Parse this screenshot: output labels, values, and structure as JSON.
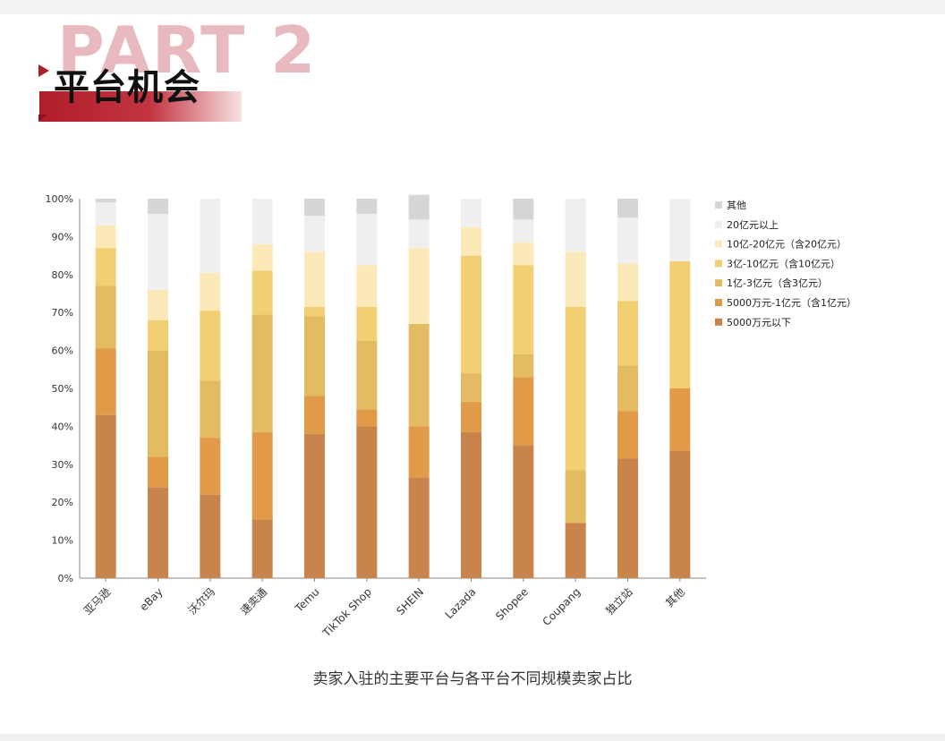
{
  "header": {
    "part_label": "PART 2",
    "title": "平台机会"
  },
  "caption": "卖家入驻的主要平台与各平台不同规模卖家占比",
  "chart_data": {
    "type": "bar",
    "stacked": true,
    "title": "",
    "xlabel": "",
    "ylabel": "",
    "ylim": [
      0,
      100
    ],
    "y_ticks": [
      "0%",
      "10%",
      "20%",
      "30%",
      "40%",
      "50%",
      "60%",
      "70%",
      "80%",
      "90%",
      "100%"
    ],
    "legend_position": "right",
    "categories": [
      "亚马逊",
      "eBay",
      "沃尔玛",
      "速卖通",
      "Temu",
      "TikTok Shop",
      "SHEIN",
      "Lazada",
      "Shopee",
      "Coupang",
      "独立站",
      "其他"
    ],
    "series": [
      {
        "name": "5000万元以下",
        "color": "#c8844a",
        "values": [
          43,
          24,
          22,
          15.5,
          38,
          40,
          26.5,
          38.5,
          35,
          14.5,
          31.5,
          33.5
        ]
      },
      {
        "name": "5000万元-1亿元（含1亿元）",
        "color": "#e09a48",
        "values": [
          17.5,
          8,
          15,
          23,
          10,
          4.5,
          13.5,
          8,
          18,
          0,
          12.5,
          16.5
        ]
      },
      {
        "name": "1亿-3亿元（含3亿元）",
        "color": "#e2bb62",
        "values": [
          16.5,
          28,
          15,
          31,
          21,
          18,
          27,
          7.5,
          6,
          14,
          12,
          0
        ]
      },
      {
        "name": "3亿-10亿元（含10亿元）",
        "color": "#f2cf72",
        "values": [
          10,
          8,
          18.5,
          11.5,
          2.5,
          9,
          0,
          31,
          23.5,
          43,
          17,
          33.5
        ]
      },
      {
        "name": "10亿-20亿元（含20亿元）",
        "color": "#fbe9b9",
        "values": [
          6,
          8,
          10,
          7,
          14.5,
          11,
          20,
          7.5,
          6,
          14.5,
          10,
          0
        ]
      },
      {
        "name": "20亿元以上",
        "color": "#efefef",
        "values": [
          6,
          20,
          19.5,
          12,
          9.5,
          13.5,
          7.5,
          7.5,
          6,
          14,
          12,
          16.5
        ]
      },
      {
        "name": "其他",
        "color": "#d6d6d6",
        "values": [
          1,
          4,
          0,
          0,
          4.5,
          4,
          6.5,
          0,
          5.5,
          0,
          5,
          0
        ]
      }
    ]
  }
}
